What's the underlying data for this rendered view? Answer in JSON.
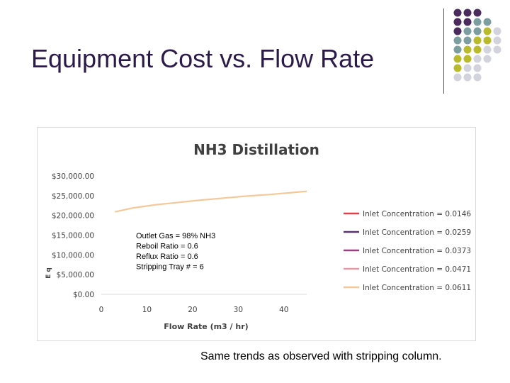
{
  "slide": {
    "title": "Equipment Cost vs. Flow Rate",
    "caption": "Same trends as observed with stripping column.",
    "decor_colors": [
      "#4b2a5e",
      "#7d9ea0",
      "#b9bb2c",
      "#d3d3de"
    ]
  },
  "chart_data": {
    "type": "line",
    "title": "NH3 Distillation",
    "xlabel": "Flow Rate (m3 / hr)",
    "ylabel": "E q",
    "xlim": [
      0,
      45
    ],
    "ylim": [
      0,
      30000
    ],
    "xticks": [
      0,
      10,
      20,
      30,
      40
    ],
    "yticks": [
      0,
      5000,
      10000,
      15000,
      20000,
      25000,
      30000
    ],
    "ytick_labels": [
      "$0.00",
      "$5,000.00",
      "$10,000.00",
      "$15,000.00",
      "$20,000.00",
      "$25,000.00",
      "$30,000.00"
    ],
    "grid": false,
    "legend_position": "right",
    "annotation": [
      "Outlet Gas = 98% NH3",
      "Reboil Ratio = 0.6",
      "Reflux Ratio = 0.6",
      "Stripping Tray # = 6"
    ],
    "series": [
      {
        "name": "Inlet Concentration = 0.0146",
        "color": "#e0404c",
        "x": [],
        "y": []
      },
      {
        "name": "Inlet Concentration = 0.0259",
        "color": "#5c3472",
        "x": [],
        "y": []
      },
      {
        "name": "Inlet Concentration = 0.0373",
        "color": "#a03c84",
        "x": [],
        "y": []
      },
      {
        "name": "Inlet Concentration = 0.0471",
        "color": "#e89aa8",
        "x": [],
        "y": []
      },
      {
        "name": "Inlet Concentration = 0.0611",
        "color": "#f5c89a",
        "x": [
          3,
          7,
          12,
          17,
          22,
          27,
          32,
          37,
          42,
          45
        ],
        "y": [
          20900,
          21900,
          22700,
          23300,
          23900,
          24400,
          24900,
          25300,
          25800,
          26100
        ]
      }
    ]
  }
}
